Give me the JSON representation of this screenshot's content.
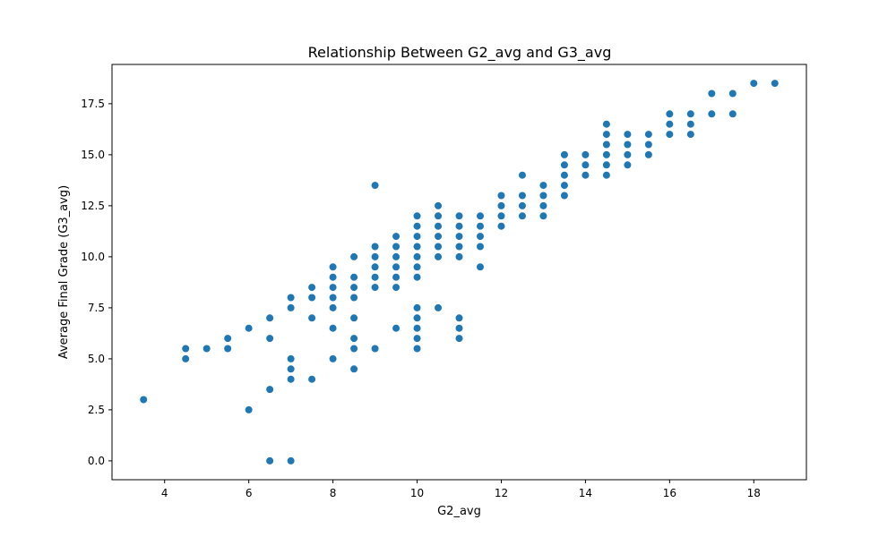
{
  "chart_data": {
    "type": "scatter",
    "title": "Relationship Between G2_avg and G3_avg",
    "xlabel": "G2_avg",
    "ylabel": "Average Final Grade (G3_avg)",
    "xlim": [
      2.75,
      19.25
    ],
    "ylim": [
      -0.925,
      19.425
    ],
    "xticks": [
      4,
      6,
      8,
      10,
      12,
      14,
      16,
      18
    ],
    "xtick_labels": [
      "4",
      "6",
      "8",
      "10",
      "12",
      "14",
      "16",
      "18"
    ],
    "yticks": [
      0.0,
      2.5,
      5.0,
      7.5,
      10.0,
      12.5,
      15.0,
      17.5
    ],
    "ytick_labels": [
      "0.0",
      "2.5",
      "5.0",
      "7.5",
      "10.0",
      "12.5",
      "15.0",
      "17.5"
    ],
    "grid": false,
    "color": "#1f77b4",
    "points": [
      [
        3.5,
        3.0
      ],
      [
        4.5,
        5.5
      ],
      [
        4.5,
        5.0
      ],
      [
        5.0,
        5.5
      ],
      [
        5.5,
        6.0
      ],
      [
        5.5,
        5.5
      ],
      [
        6.0,
        6.5
      ],
      [
        6.0,
        2.5
      ],
      [
        6.5,
        7.0
      ],
      [
        6.5,
        6.0
      ],
      [
        6.5,
        3.5
      ],
      [
        6.5,
        0.0
      ],
      [
        7.0,
        8.0
      ],
      [
        7.0,
        7.5
      ],
      [
        7.0,
        5.0
      ],
      [
        7.0,
        4.5
      ],
      [
        7.0,
        4.0
      ],
      [
        7.0,
        0.0
      ],
      [
        7.5,
        8.5
      ],
      [
        7.5,
        8.0
      ],
      [
        7.5,
        7.0
      ],
      [
        7.5,
        4.0
      ],
      [
        8.0,
        9.5
      ],
      [
        8.0,
        9.0
      ],
      [
        8.0,
        8.5
      ],
      [
        8.0,
        8.0
      ],
      [
        8.0,
        7.5
      ],
      [
        8.0,
        6.5
      ],
      [
        8.0,
        5.0
      ],
      [
        8.5,
        10.0
      ],
      [
        8.5,
        9.0
      ],
      [
        8.5,
        8.5
      ],
      [
        8.5,
        8.0
      ],
      [
        8.5,
        7.0
      ],
      [
        8.5,
        6.0
      ],
      [
        8.5,
        5.5
      ],
      [
        8.5,
        4.5
      ],
      [
        9.0,
        13.5
      ],
      [
        9.0,
        10.5
      ],
      [
        9.0,
        10.0
      ],
      [
        9.0,
        9.5
      ],
      [
        9.0,
        9.0
      ],
      [
        9.0,
        8.5
      ],
      [
        9.0,
        5.5
      ],
      [
        9.5,
        11.0
      ],
      [
        9.5,
        10.5
      ],
      [
        9.5,
        10.0
      ],
      [
        9.5,
        9.5
      ],
      [
        9.5,
        9.0
      ],
      [
        9.5,
        8.5
      ],
      [
        9.5,
        6.5
      ],
      [
        10.0,
        12.0
      ],
      [
        10.0,
        11.5
      ],
      [
        10.0,
        11.0
      ],
      [
        10.0,
        10.5
      ],
      [
        10.0,
        10.0
      ],
      [
        10.0,
        9.5
      ],
      [
        10.0,
        9.0
      ],
      [
        10.0,
        7.5
      ],
      [
        10.0,
        7.0
      ],
      [
        10.0,
        6.5
      ],
      [
        10.0,
        6.0
      ],
      [
        10.0,
        5.5
      ],
      [
        10.5,
        12.5
      ],
      [
        10.5,
        12.0
      ],
      [
        10.5,
        11.5
      ],
      [
        10.5,
        11.0
      ],
      [
        10.5,
        10.5
      ],
      [
        10.5,
        10.0
      ],
      [
        10.5,
        7.5
      ],
      [
        11.0,
        12.0
      ],
      [
        11.0,
        11.5
      ],
      [
        11.0,
        11.0
      ],
      [
        11.0,
        10.5
      ],
      [
        11.0,
        10.0
      ],
      [
        11.0,
        7.0
      ],
      [
        11.0,
        6.5
      ],
      [
        11.0,
        6.0
      ],
      [
        11.5,
        12.0
      ],
      [
        11.5,
        11.5
      ],
      [
        11.5,
        11.0
      ],
      [
        11.5,
        10.5
      ],
      [
        11.5,
        9.5
      ],
      [
        12.0,
        13.0
      ],
      [
        12.0,
        12.5
      ],
      [
        12.0,
        12.0
      ],
      [
        12.0,
        11.5
      ],
      [
        12.5,
        14.0
      ],
      [
        12.5,
        13.0
      ],
      [
        12.5,
        12.5
      ],
      [
        12.5,
        12.0
      ],
      [
        13.0,
        13.5
      ],
      [
        13.0,
        13.0
      ],
      [
        13.0,
        12.5
      ],
      [
        13.0,
        12.0
      ],
      [
        13.5,
        15.0
      ],
      [
        13.5,
        14.5
      ],
      [
        13.5,
        14.0
      ],
      [
        13.5,
        13.5
      ],
      [
        13.5,
        13.0
      ],
      [
        14.0,
        15.0
      ],
      [
        14.0,
        14.5
      ],
      [
        14.0,
        14.0
      ],
      [
        14.5,
        16.5
      ],
      [
        14.5,
        16.0
      ],
      [
        14.5,
        15.5
      ],
      [
        14.5,
        15.0
      ],
      [
        14.5,
        14.5
      ],
      [
        14.5,
        14.0
      ],
      [
        15.0,
        16.0
      ],
      [
        15.0,
        15.5
      ],
      [
        15.0,
        15.0
      ],
      [
        15.0,
        14.5
      ],
      [
        15.5,
        16.0
      ],
      [
        15.5,
        15.5
      ],
      [
        15.5,
        15.0
      ],
      [
        16.0,
        17.0
      ],
      [
        16.0,
        16.5
      ],
      [
        16.0,
        16.0
      ],
      [
        16.5,
        17.0
      ],
      [
        16.5,
        16.5
      ],
      [
        16.5,
        16.0
      ],
      [
        17.0,
        18.0
      ],
      [
        17.0,
        17.0
      ],
      [
        17.5,
        18.0
      ],
      [
        17.5,
        17.0
      ],
      [
        18.0,
        18.5
      ],
      [
        18.5,
        18.5
      ]
    ]
  }
}
